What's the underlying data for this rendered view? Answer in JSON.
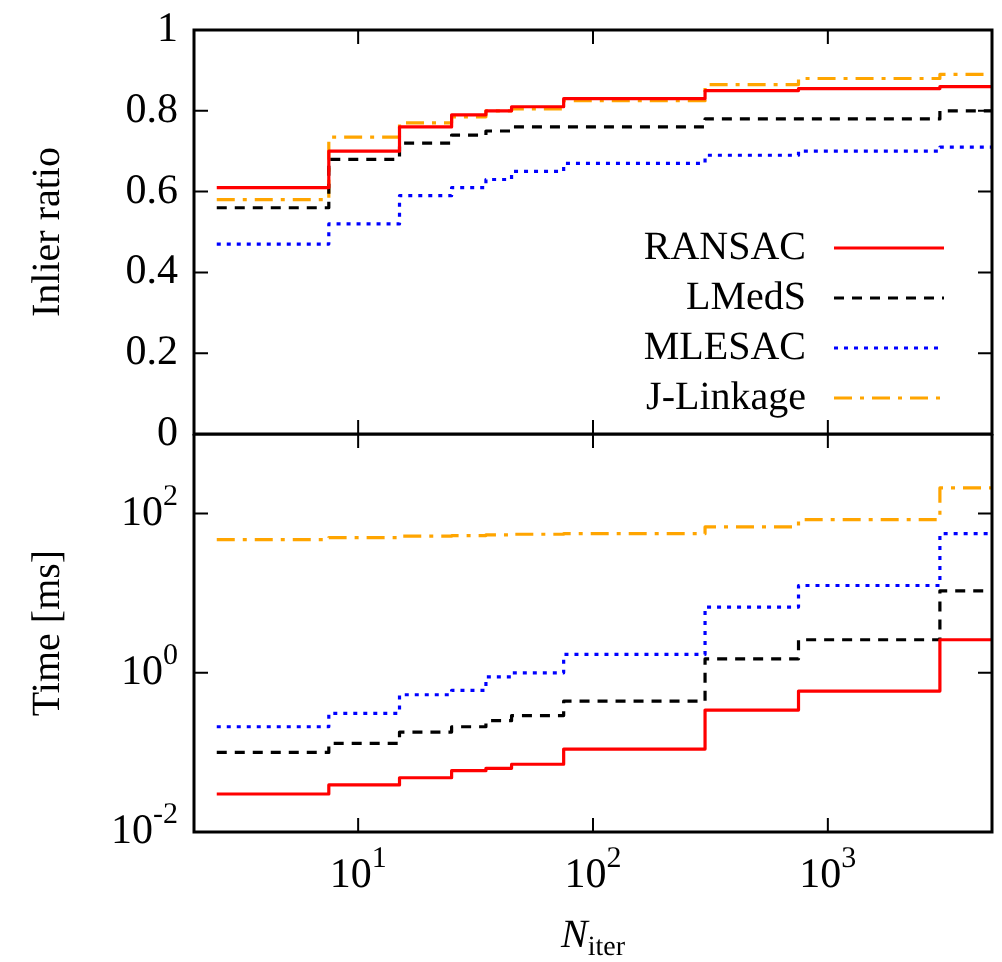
{
  "chart_data": [
    {
      "type": "step",
      "ylabel": "Inlier ratio",
      "x": [
        2.5,
        7.5,
        15,
        25,
        35,
        45,
        75,
        300,
        750,
        3000,
        5000
      ],
      "xlim": [
        2,
        5000
      ],
      "xticks": [
        10,
        100,
        1000
      ],
      "ylim": [
        0,
        1
      ],
      "yticks": [
        0,
        0.2,
        0.4,
        0.6,
        0.8,
        1
      ],
      "log": "x",
      "tick_labels": "y",
      "legend": "bottom right",
      "grid": false,
      "marker": "none",
      "series": [
        {
          "name": "RANSAC",
          "color": "#ff0000",
          "line_style": "solid",
          "values": [
            0.61,
            0.7,
            0.76,
            0.79,
            0.8,
            0.81,
            0.83,
            0.85,
            0.855,
            0.86,
            0.86
          ]
        },
        {
          "name": "LMedS",
          "color": "#000000",
          "line_style": "dashed",
          "values": [
            0.56,
            0.68,
            0.72,
            0.74,
            0.75,
            0.76,
            0.76,
            0.78,
            0.78,
            0.8,
            0.8
          ]
        },
        {
          "name": "MLESAC",
          "color": "#0000ff",
          "line_style": "dotted",
          "values": [
            0.47,
            0.52,
            0.59,
            0.61,
            0.63,
            0.65,
            0.67,
            0.69,
            0.7,
            0.71,
            0.71
          ]
        },
        {
          "name": "J-Linkage",
          "color": "#ffa500",
          "line_style": "dashdot",
          "values": [
            0.58,
            0.735,
            0.77,
            0.785,
            0.8,
            0.805,
            0.825,
            0.865,
            0.88,
            0.89,
            0.89
          ]
        }
      ]
    },
    {
      "type": "step",
      "ylabel": "Time [ms]",
      "xlabel": "N$_{iter}$",
      "x": [
        2.5,
        7.5,
        15,
        25,
        35,
        45,
        75,
        300,
        750,
        3000,
        5000
      ],
      "xlim": [
        2,
        5000
      ],
      "xticks": [
        {
          "value": 10,
          "label": "10$^{1}$"
        },
        {
          "value": 100,
          "label": "10$^{2}$"
        },
        {
          "value": 1000,
          "label": "10$^{3}$"
        }
      ],
      "ylim": [
        0.01,
        1000
      ],
      "yticks": [
        {
          "value": 0.01,
          "label": "10$^{-2}$"
        },
        {
          "value": 1,
          "label": "10$^{0}$"
        },
        {
          "value": 100,
          "label": "10$^{2}$"
        }
      ],
      "log": "xy",
      "grid": false,
      "marker": "none",
      "series": [
        {
          "color": "#ff0000",
          "line_style": "solid",
          "values": [
            0.03,
            0.039,
            0.048,
            0.059,
            0.063,
            0.071,
            0.11,
            0.34,
            0.59,
            2.6,
            2.6
          ]
        },
        {
          "color": "#000000",
          "line_style": "dashed",
          "values": [
            0.1,
            0.13,
            0.18,
            0.21,
            0.25,
            0.29,
            0.44,
            1.5,
            2.6,
            10.7,
            10.7
          ]
        },
        {
          "color": "#0000ff",
          "line_style": "dotted",
          "values": [
            0.21,
            0.31,
            0.53,
            0.6,
            0.89,
            1.0,
            1.7,
            6.7,
            12.5,
            56,
            56
          ]
        },
        {
          "color": "#ffa500",
          "line_style": "dashdot",
          "values": [
            47,
            50,
            52,
            53,
            54,
            55,
            56,
            68,
            84,
            210,
            210
          ]
        }
      ]
    }
  ]
}
